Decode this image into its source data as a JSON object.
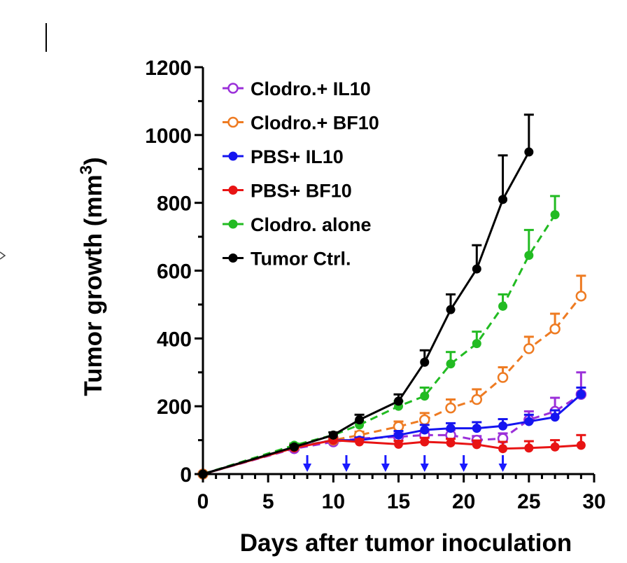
{
  "chart_data": {
    "type": "line",
    "xlabel": "Days after tumor inoculation",
    "ylabel": "Tumor growth (mm",
    "ylabel_superscript": "3",
    "ylabel_close": ")",
    "xlim": [
      0,
      30
    ],
    "ylim": [
      0,
      1200
    ],
    "xticks": [
      0,
      5,
      10,
      15,
      20,
      25,
      30
    ],
    "yticks": [
      0,
      200,
      400,
      600,
      800,
      1000,
      1200
    ],
    "grid": false,
    "legend_position": "top-left",
    "treatment_days": [
      8,
      11,
      14,
      17,
      20,
      23
    ],
    "arrow_color": "#1a1aff",
    "series": [
      {
        "name": "Clodro.+ IL10",
        "color": "#9b30d9",
        "marker": "open",
        "dashed": true,
        "x": [
          0,
          7,
          10,
          12,
          15,
          17,
          19,
          21,
          23,
          25,
          27,
          29
        ],
        "y": [
          0,
          75,
          95,
          105,
          110,
          115,
          115,
          100,
          105,
          160,
          185,
          235
        ],
        "err": [
          0,
          5,
          8,
          10,
          10,
          12,
          15,
          12,
          15,
          25,
          40,
          65
        ]
      },
      {
        "name": "Clodro.+ BF10",
        "color": "#ee7b22",
        "marker": "open",
        "dashed": true,
        "x": [
          0,
          7,
          10,
          12,
          15,
          17,
          19,
          21,
          23,
          25,
          27,
          29
        ],
        "y": [
          0,
          80,
          100,
          115,
          140,
          160,
          195,
          220,
          285,
          370,
          428,
          525
        ],
        "err": [
          0,
          5,
          8,
          10,
          15,
          20,
          25,
          30,
          30,
          35,
          45,
          60
        ]
      },
      {
        "name": "PBS+ IL10",
        "color": "#1515f0",
        "marker": "filled",
        "dashed": false,
        "x": [
          0,
          7,
          10,
          12,
          15,
          17,
          19,
          21,
          23,
          25,
          27,
          29
        ],
        "y": [
          0,
          78,
          100,
          100,
          115,
          130,
          135,
          135,
          142,
          155,
          168,
          235
        ],
        "err": [
          0,
          5,
          8,
          8,
          12,
          15,
          15,
          18,
          20,
          20,
          20,
          20
        ]
      },
      {
        "name": "PBS+ BF10",
        "color": "#e81414",
        "marker": "filled",
        "dashed": false,
        "x": [
          0,
          7,
          10,
          12,
          15,
          17,
          19,
          21,
          23,
          25,
          27,
          29
        ],
        "y": [
          0,
          77,
          100,
          95,
          88,
          95,
          92,
          87,
          75,
          77,
          80,
          85
        ],
        "err": [
          0,
          5,
          8,
          8,
          10,
          12,
          12,
          12,
          20,
          20,
          20,
          30
        ]
      },
      {
        "name": "Clodro. alone",
        "color": "#22bb22",
        "marker": "filled",
        "dashed": true,
        "x": [
          0,
          7,
          10,
          12,
          15,
          17,
          19,
          21,
          23,
          25,
          27
        ],
        "y": [
          0,
          85,
          115,
          145,
          200,
          230,
          325,
          385,
          495,
          645,
          765
        ],
        "err": [
          0,
          5,
          8,
          10,
          15,
          25,
          35,
          35,
          35,
          75,
          55
        ]
      },
      {
        "name": "Tumor Ctrl.",
        "color": "#000000",
        "marker": "filled",
        "dashed": false,
        "x": [
          0,
          7,
          10,
          12,
          15,
          17,
          19,
          21,
          23,
          25
        ],
        "y": [
          0,
          80,
          115,
          160,
          215,
          330,
          485,
          605,
          810,
          950
        ],
        "err": [
          0,
          5,
          8,
          15,
          20,
          35,
          45,
          70,
          130,
          110
        ]
      }
    ]
  }
}
